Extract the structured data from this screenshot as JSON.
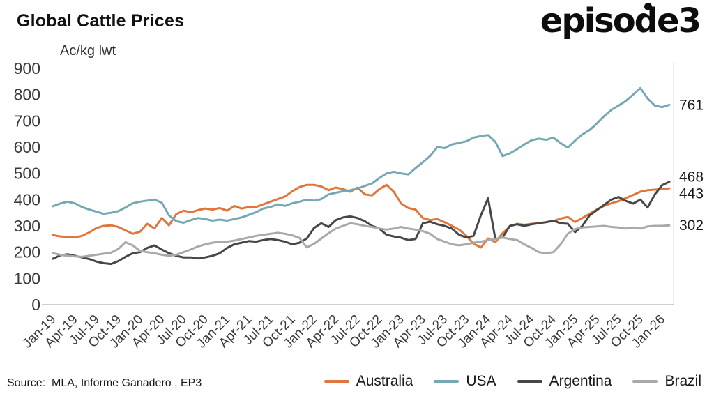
{
  "header": {
    "title": "Global Cattle Prices",
    "logo": "episode3"
  },
  "chart": {
    "unit_label": "Ac/kg lwt",
    "source": "Source:  MLA, Informe Ganadero , EP3"
  },
  "chart_data": {
    "type": "line",
    "title": "Global Cattle Prices",
    "ylabel": "Ac/kg lwt",
    "ylim": [
      0,
      900
    ],
    "y_ticks": [
      0,
      100,
      200,
      300,
      400,
      500,
      600,
      700,
      800,
      900
    ],
    "grid": false,
    "legend_position": "bottom",
    "x_tick_interval": 3,
    "x_labels": [
      "Jan-19",
      "Apr-19",
      "Jul-19",
      "Oct-19",
      "Jan-20",
      "Apr-20",
      "Jul-20",
      "Oct-20",
      "Jan-21",
      "Apr-21",
      "Jul-21",
      "Oct-21",
      "Jan-22",
      "Apr-22",
      "Jul-22",
      "Oct-22",
      "Jan-23",
      "Apr-23",
      "Jul-23",
      "Oct-23",
      "Jan-24",
      "Apr-24",
      "Jul-24",
      "Oct-24",
      "Jan-25",
      "Apr-25",
      "Jul-25",
      "Oct-25",
      "Jan-26"
    ],
    "series": [
      {
        "name": "Australia",
        "color": "#E0763B",
        "end_label": "443",
        "values": [
          265,
          260,
          258,
          256,
          262,
          275,
          292,
          300,
          302,
          296,
          283,
          270,
          278,
          308,
          290,
          330,
          302,
          345,
          358,
          352,
          360,
          366,
          362,
          368,
          358,
          376,
          366,
          372,
          372,
          382,
          392,
          402,
          412,
          432,
          448,
          456,
          456,
          450,
          436,
          446,
          440,
          430,
          446,
          420,
          416,
          440,
          456,
          430,
          385,
          368,
          362,
          330,
          322,
          326,
          314,
          300,
          286,
          262,
          232,
          218,
          252,
          238,
          272,
          298,
          308,
          304,
          308,
          310,
          314,
          318,
          328,
          334,
          315,
          330,
          346,
          362,
          376,
          386,
          394,
          406,
          418,
          430,
          436,
          438,
          440,
          443
        ]
      },
      {
        "name": "USA",
        "color": "#74A9B4",
        "end_label": "761",
        "values": [
          375,
          385,
          392,
          386,
          372,
          362,
          354,
          346,
          350,
          356,
          370,
          386,
          392,
          396,
          400,
          388,
          340,
          318,
          312,
          322,
          330,
          326,
          320,
          324,
          320,
          326,
          332,
          342,
          352,
          366,
          372,
          382,
          376,
          386,
          392,
          400,
          396,
          402,
          420,
          426,
          432,
          436,
          442,
          452,
          462,
          482,
          500,
          506,
          500,
          496,
          520,
          542,
          566,
          600,
          596,
          610,
          616,
          622,
          636,
          642,
          646,
          620,
          566,
          576,
          592,
          610,
          626,
          632,
          628,
          636,
          615,
          598,
          625,
          648,
          665,
          690,
          718,
          742,
          758,
          776,
          800,
          825,
          785,
          758,
          752,
          761
        ]
      },
      {
        "name": "Argentina",
        "color": "#474747",
        "end_label": "468",
        "values": [
          175,
          188,
          192,
          186,
          180,
          174,
          164,
          158,
          155,
          166,
          182,
          196,
          200,
          216,
          226,
          210,
          196,
          186,
          180,
          180,
          176,
          180,
          186,
          196,
          216,
          230,
          236,
          242,
          240,
          246,
          250,
          246,
          240,
          230,
          236,
          252,
          292,
          310,
          296,
          322,
          332,
          336,
          330,
          318,
          300,
          290,
          266,
          260,
          255,
          246,
          250,
          310,
          316,
          306,
          300,
          290,
          266,
          256,
          262,
          340,
          405,
          250,
          256,
          300,
          306,
          300,
          306,
          310,
          314,
          320,
          310,
          308,
          276,
          300,
          340,
          360,
          380,
          400,
          410,
          395,
          385,
          400,
          370,
          420,
          455,
          468
        ]
      },
      {
        "name": "Brazil",
        "color": "#A9A9A9",
        "end_label": "302",
        "values": [
          196,
          190,
          186,
          184,
          182,
          186,
          190,
          194,
          198,
          212,
          238,
          226,
          205,
          200,
          196,
          190,
          186,
          190,
          200,
          210,
          222,
          230,
          236,
          240,
          240,
          244,
          250,
          256,
          262,
          266,
          270,
          274,
          270,
          264,
          254,
          218,
          232,
          252,
          272,
          290,
          300,
          310,
          306,
          300,
          296,
          290,
          286,
          290,
          296,
          290,
          286,
          280,
          270,
          250,
          240,
          230,
          226,
          230,
          236,
          240,
          246,
          250,
          256,
          250,
          246,
          230,
          216,
          200,
          196,
          200,
          230,
          270,
          288,
          294,
          296,
          298,
          300,
          296,
          294,
          290,
          294,
          290,
          298,
          300,
          300,
          302
        ]
      }
    ]
  }
}
